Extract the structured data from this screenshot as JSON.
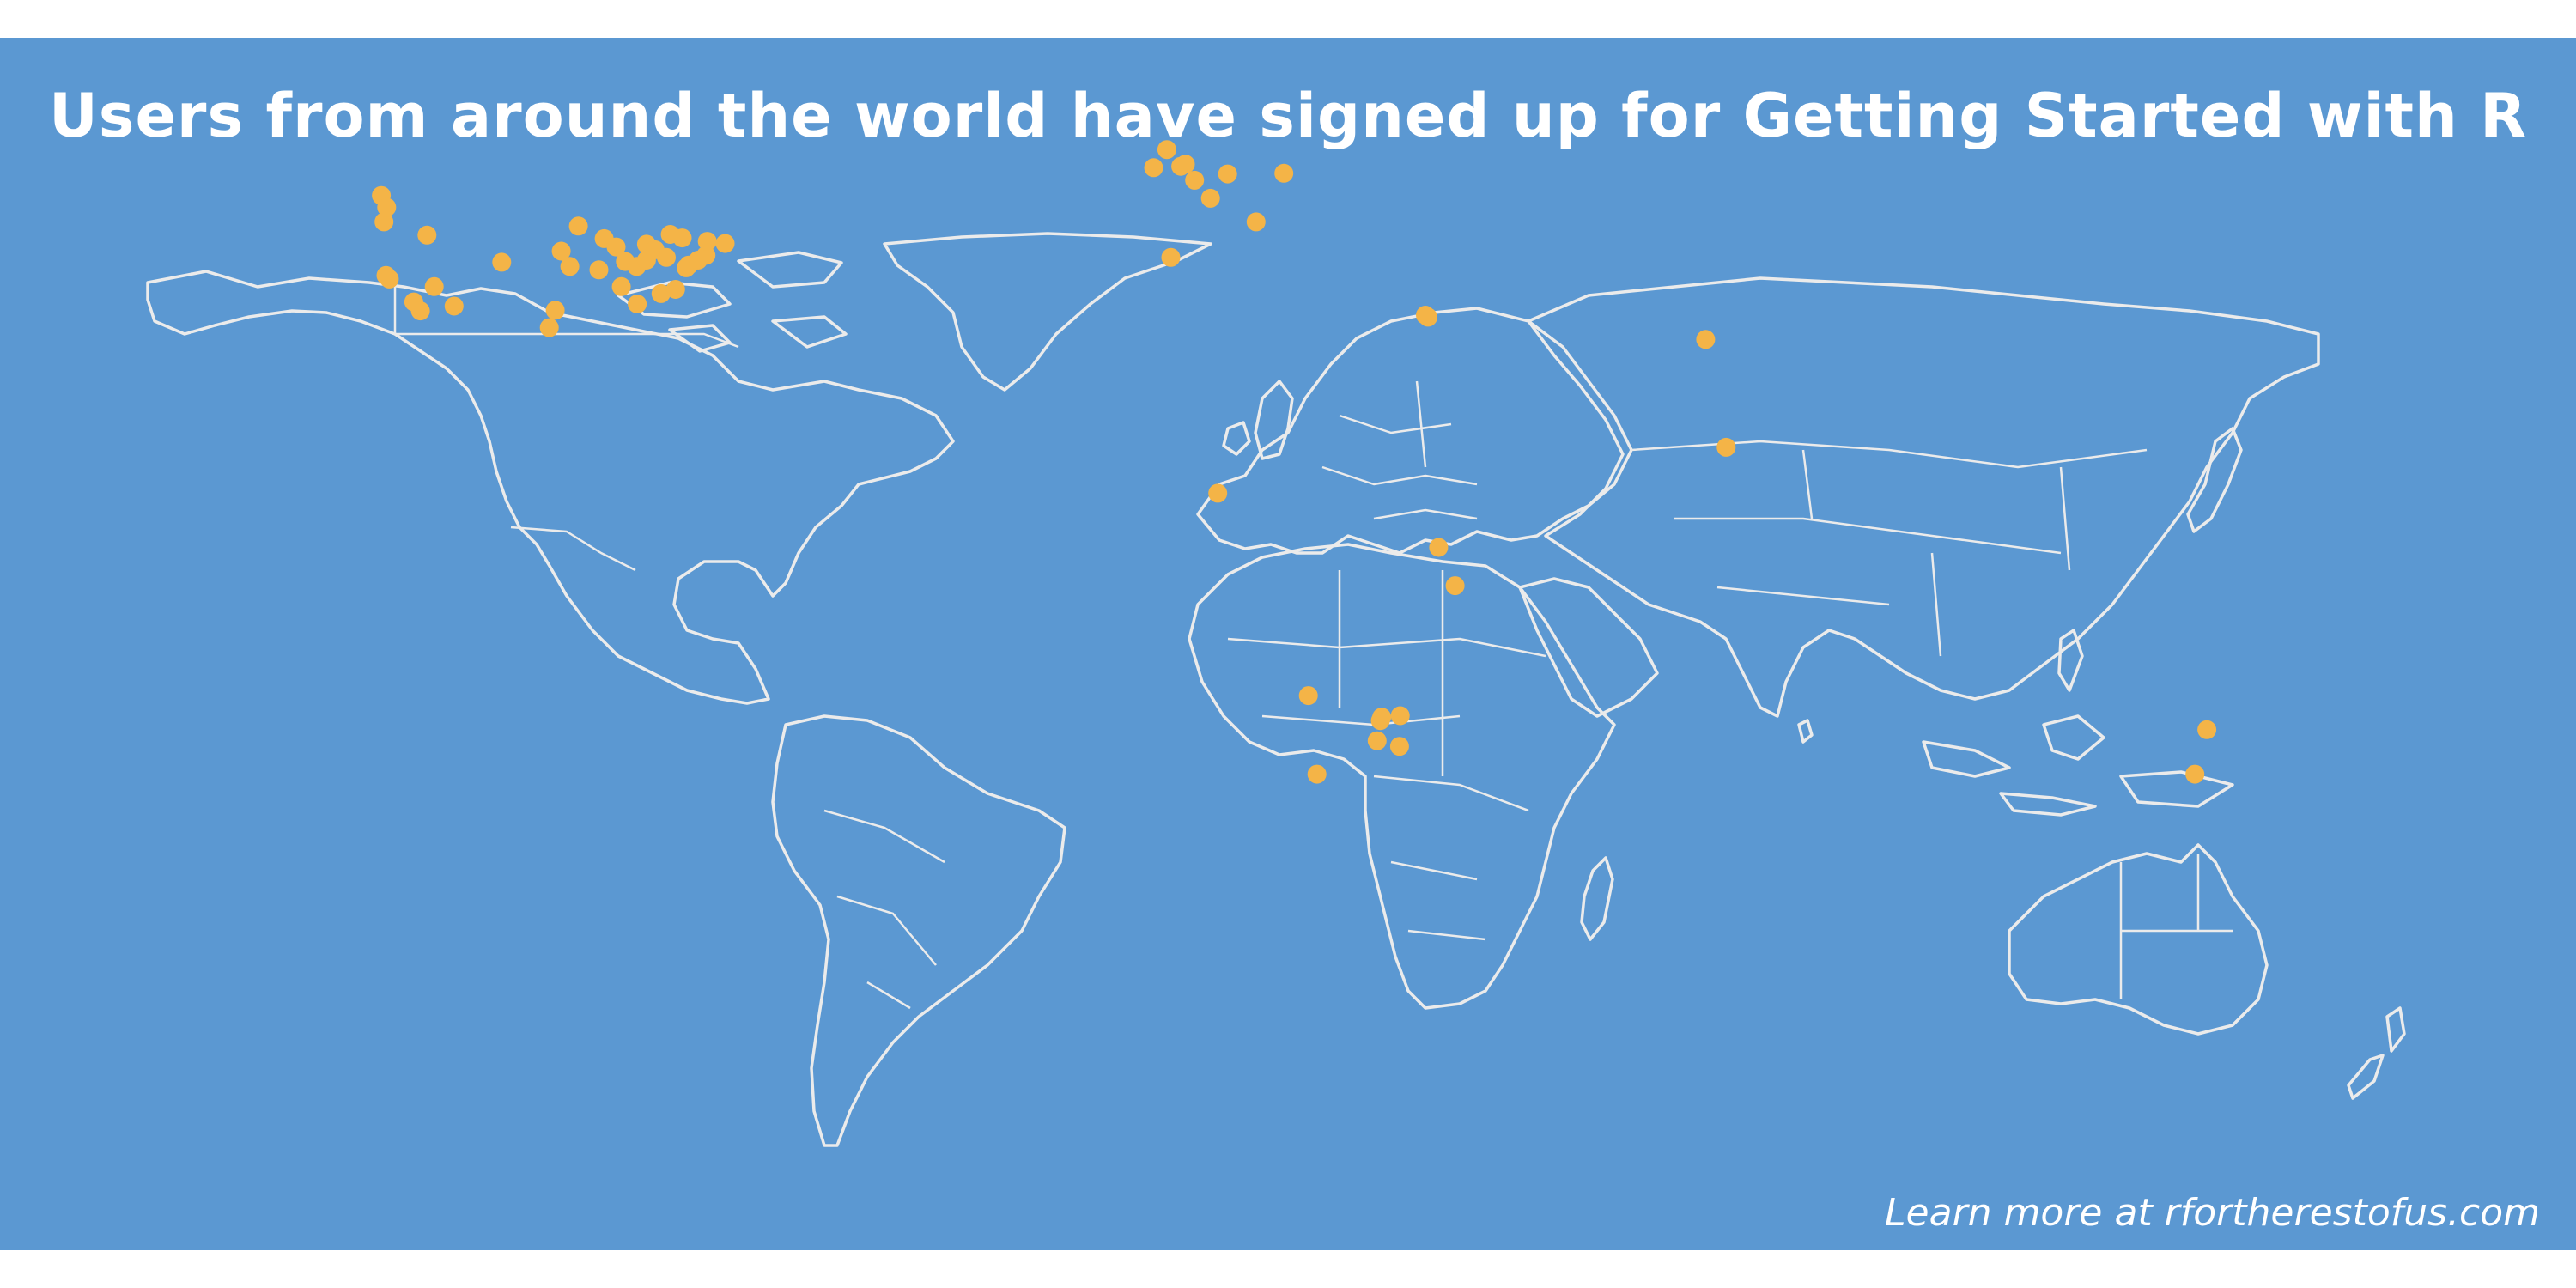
{
  "title": "Users from around the world have signed up for Getting Started with R",
  "footer": "Learn more at rfortherestofus.com",
  "colors": {
    "ocean": "#5b98d2",
    "land_outline": "#ebebeb",
    "point": "#f4b447",
    "text": "#ffffff"
  },
  "chart_data": {
    "type": "scatter",
    "map_projection": "equirectangular",
    "points": [
      {
        "lon": -123.1,
        "lat": 49.3
      },
      {
        "lon": -122.7,
        "lat": 45.5
      },
      {
        "lon": -122.3,
        "lat": 47.6
      },
      {
        "lon": -116.2,
        "lat": 43.6
      },
      {
        "lon": -122.4,
        "lat": 37.8
      },
      {
        "lon": -121.9,
        "lat": 37.3
      },
      {
        "lon": -118.2,
        "lat": 34.0
      },
      {
        "lon": -117.2,
        "lat": 32.7
      },
      {
        "lon": -115.1,
        "lat": 36.2
      },
      {
        "lon": -112.1,
        "lat": 33.4
      },
      {
        "lon": -104.9,
        "lat": 39.7
      },
      {
        "lon": -97.7,
        "lat": 30.3
      },
      {
        "lon": -96.8,
        "lat": 32.8
      },
      {
        "lon": -95.9,
        "lat": 41.3
      },
      {
        "lon": -93.3,
        "lat": 44.9
      },
      {
        "lon": -94.6,
        "lat": 39.1
      },
      {
        "lon": -90.2,
        "lat": 38.6
      },
      {
        "lon": -89.4,
        "lat": 43.1
      },
      {
        "lon": -87.6,
        "lat": 41.9
      },
      {
        "lon": -86.2,
        "lat": 39.8
      },
      {
        "lon": -86.8,
        "lat": 36.2
      },
      {
        "lon": -84.4,
        "lat": 33.7
      },
      {
        "lon": -84.5,
        "lat": 39.1
      },
      {
        "lon": -83.0,
        "lat": 40.0
      },
      {
        "lon": -83.0,
        "lat": 42.3
      },
      {
        "lon": -81.7,
        "lat": 41.5
      },
      {
        "lon": -80.8,
        "lat": 35.2
      },
      {
        "lon": -80.0,
        "lat": 40.4
      },
      {
        "lon": -78.6,
        "lat": 35.8
      },
      {
        "lon": -77.0,
        "lat": 38.9
      },
      {
        "lon": -76.6,
        "lat": 39.3
      },
      {
        "lon": -75.2,
        "lat": 40.0
      },
      {
        "lon": -74.0,
        "lat": 40.7
      },
      {
        "lon": -73.8,
        "lat": 42.7
      },
      {
        "lon": -71.1,
        "lat": 42.4
      },
      {
        "lon": -77.6,
        "lat": 43.2
      },
      {
        "lon": -79.4,
        "lat": 43.7
      },
      {
        "lon": -6.3,
        "lat": 53.3
      },
      {
        "lon": -4.3,
        "lat": 55.9
      },
      {
        "lon": -2.2,
        "lat": 53.5
      },
      {
        "lon": -1.5,
        "lat": 53.8
      },
      {
        "lon": -0.1,
        "lat": 51.5
      },
      {
        "lon": 4.9,
        "lat": 52.4
      },
      {
        "lon": 2.3,
        "lat": 48.9
      },
      {
        "lon": 13.4,
        "lat": 52.5
      },
      {
        "lon": 9.2,
        "lat": 45.5
      },
      {
        "lon": -3.7,
        "lat": 40.4
      },
      {
        "lon": 34.8,
        "lat": 32.1
      },
      {
        "lon": 35.2,
        "lat": 31.8
      },
      {
        "lon": 77.2,
        "lat": 28.6
      },
      {
        "lon": 80.3,
        "lat": 13.1
      },
      {
        "lon": 3.4,
        "lat": 6.5
      },
      {
        "lon": 36.8,
        "lat": -1.3
      },
      {
        "lon": 39.3,
        "lat": -6.8
      },
      {
        "lon": 17.1,
        "lat": -22.6
      },
      {
        "lon": 18.4,
        "lat": -33.9
      },
      {
        "lon": 28.0,
        "lat": -26.2
      },
      {
        "lon": 28.2,
        "lat": -25.7
      },
      {
        "lon": 31.0,
        "lat": -25.5
      },
      {
        "lon": 27.5,
        "lat": -29.1
      },
      {
        "lon": 30.9,
        "lat": -29.9
      },
      {
        "lon": 151.2,
        "lat": -33.9
      },
      {
        "lon": 153.0,
        "lat": -27.5
      }
    ]
  }
}
